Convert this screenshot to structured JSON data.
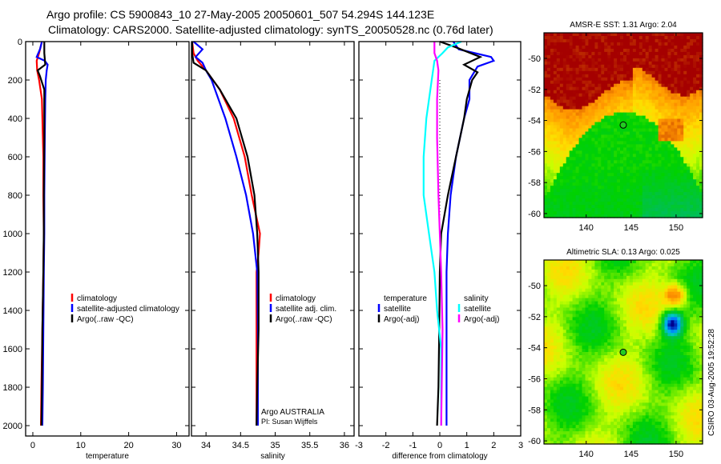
{
  "header": {
    "title_line1": "Argo profile: CS 5900843_10 27-May-2005 20050601_507 54.294S 144.123E",
    "title_line2": "Climatology: CARS2000. Satellite-adjusted climatology: synTS_20050528.nc (0.76d later)"
  },
  "footer_stamp": "CSIRO 03-Aug-2005 19:52:28",
  "credit": [
    "Argo AUSTRALIA",
    "PI: Susan Wijffels"
  ],
  "chart_data": [
    {
      "type": "line",
      "title": "",
      "xlabel": "temperature",
      "ylabel": "",
      "xlim": [
        -1.5,
        32.6
      ],
      "ylim": [
        2054,
        0
      ],
      "xticks": [
        0,
        10,
        20,
        30
      ],
      "yticks": [
        0,
        200,
        400,
        600,
        800,
        1000,
        1200,
        1400,
        1600,
        1800,
        2000
      ],
      "legend": [
        "climatology",
        "satellite-adjusted climatology",
        "Argo(..raw -QC)"
      ],
      "legend_placement": "center-right",
      "series": [
        {
          "name": "climatology",
          "color": "#ff0000",
          "depth": [
            0,
            60,
            100,
            150,
            200,
            300,
            400,
            600,
            800,
            1000,
            1200,
            1500,
            1800,
            2000
          ],
          "values": [
            1.9,
            1.3,
            0.8,
            0.9,
            1.3,
            1.9,
            2.0,
            2.2,
            2.2,
            2.3,
            2.2,
            2.0,
            1.8,
            1.7
          ]
        },
        {
          "name": "satellite-adjusted climatology",
          "color": "#0000ff",
          "depth": [
            0,
            40,
            80,
            100,
            120,
            150,
            200,
            300,
            500,
            800,
            1000,
            1200,
            1500,
            1800,
            2000
          ],
          "values": [
            1.9,
            1.5,
            0.8,
            2.5,
            3.1,
            2.9,
            2.7,
            2.6,
            2.5,
            2.4,
            2.4,
            2.3,
            2.2,
            2.1,
            2.0
          ]
        },
        {
          "name": "Argo(..raw -QC)",
          "color": "#000000",
          "depth": [
            0,
            60,
            90,
            120,
            150,
            180,
            250,
            300,
            500,
            800,
            1000,
            1200,
            1500,
            1800,
            2000
          ],
          "values": [
            2.4,
            2.4,
            2.5,
            2.6,
            1.0,
            1.5,
            2.4,
            2.4,
            2.4,
            2.3,
            2.3,
            2.2,
            2.0,
            1.9,
            1.8
          ]
        }
      ]
    },
    {
      "type": "line",
      "title": "",
      "xlabel": "salinity",
      "xlim": [
        33.79,
        36.14
      ],
      "ylim": [
        2054,
        0
      ],
      "xticks": [
        34,
        34.5,
        35,
        35.5,
        36
      ],
      "xticklabels": [
        "34",
        "34.5",
        "35",
        "35.5",
        "36"
      ],
      "legend": [
        "climatology",
        "satellite adj. clim.",
        "Argo(..raw -QC)"
      ],
      "legend_placement": "center-right",
      "series": [
        {
          "name": "climatology",
          "color": "#ff0000",
          "depth": [
            0,
            60,
            100,
            150,
            250,
            400,
            600,
            800,
            1000,
            1100,
            1200,
            1500,
            2000
          ],
          "values": [
            33.8,
            33.82,
            33.88,
            34.0,
            34.2,
            34.4,
            34.56,
            34.66,
            34.78,
            34.76,
            34.73,
            34.73,
            34.73
          ]
        },
        {
          "name": "satellite adj. clim.",
          "color": "#0000ff",
          "depth": [
            0,
            40,
            80,
            110,
            150,
            200,
            400,
            600,
            800,
            1000,
            1200,
            1500,
            2000
          ],
          "values": [
            33.82,
            33.95,
            33.85,
            33.95,
            34.0,
            34.08,
            34.28,
            34.44,
            34.58,
            34.68,
            34.74,
            34.75,
            34.75
          ]
        },
        {
          "name": "Argo(..raw -QC)",
          "color": "#000000",
          "depth": [
            0,
            60,
            110,
            150,
            250,
            400,
            600,
            800,
            1000,
            1200,
            1500,
            1800,
            2000
          ],
          "values": [
            33.8,
            33.8,
            33.82,
            34.0,
            34.2,
            34.44,
            34.6,
            34.7,
            34.74,
            34.76,
            34.76,
            34.74,
            34.73
          ]
        }
      ]
    },
    {
      "type": "line",
      "title": "",
      "xlabel": "difference from climatology",
      "xlim": [
        -3,
        3
      ],
      "ylim": [
        2054,
        0
      ],
      "xticks": [
        -3,
        -2,
        -1,
        0,
        1,
        2,
        3
      ],
      "legend_groups": [
        {
          "header": "temperature",
          "items": [
            "satellite",
            "Argo(-adj)"
          ]
        },
        {
          "header": "salinity",
          "items": [
            "satellite",
            "Argo(-adj)"
          ]
        }
      ],
      "legend_placement": "center",
      "series": [
        {
          "name": "temperature satellite",
          "color": "#0000ff",
          "depth": [
            0,
            40,
            80,
            100,
            130,
            200,
            300,
            400,
            600,
            800,
            1000,
            1200,
            1500,
            2000
          ],
          "values": [
            0.5,
            0.7,
            1.9,
            2.0,
            1.4,
            1.1,
            1.1,
            0.9,
            0.6,
            0.4,
            0.3,
            0.25,
            0.25,
            0.25
          ]
        },
        {
          "name": "temperature Argo(-adj)",
          "color": "#000000",
          "depth": [
            0,
            30,
            80,
            120,
            160,
            200,
            300,
            400,
            600,
            800,
            1000,
            1200,
            1500,
            1800,
            2000
          ],
          "values": [
            0.0,
            0.6,
            1.5,
            0.9,
            1.4,
            1.2,
            1.0,
            0.9,
            0.6,
            0.3,
            0.05,
            0.0,
            -0.02,
            -0.05,
            -0.1
          ]
        },
        {
          "name": "salinity satellite",
          "color": "#00ffff",
          "depth": [
            0,
            30,
            60,
            100,
            200,
            400,
            600,
            800,
            1000,
            1200,
            1400,
            1600,
            2000
          ],
          "values": [
            0.8,
            0.3,
            0.1,
            -0.2,
            -0.3,
            -0.5,
            -0.6,
            -0.6,
            -0.4,
            -0.2,
            -0.1,
            0.05,
            0.05
          ]
        },
        {
          "name": "salinity Argo(-adj)",
          "color": "#ff00ff",
          "depth": [
            0,
            60,
            100,
            150,
            300,
            500,
            800,
            1000,
            1200,
            1500,
            2000
          ],
          "values": [
            -0.2,
            -0.2,
            -0.1,
            -0.05,
            -0.1,
            -0.1,
            -0.05,
            0.0,
            0.05,
            0.1,
            0.05
          ]
        }
      ]
    },
    {
      "type": "heatmap",
      "title": "AMSR-E SST: 1.31 Argo: 2.04",
      "xlim": [
        135.3,
        152.95
      ],
      "ylim": [
        -60.26,
        -48.35
      ],
      "xticks": [
        140,
        145,
        150
      ],
      "yticks": [
        -50,
        -52,
        -54,
        -56,
        -58,
        -60
      ],
      "marker": {
        "lon": 144.123,
        "lat": -54.294
      }
    },
    {
      "type": "heatmap",
      "title": "Altimetric SLA: 0.13 Argo: 0.025",
      "xlim": [
        135.3,
        152.95
      ],
      "ylim": [
        -60.2,
        -48.35
      ],
      "xticks": [
        140,
        145,
        150
      ],
      "yticks": [
        -50,
        -52,
        -54,
        -56,
        -58,
        -60
      ],
      "marker": {
        "lon": 144.123,
        "lat": -54.294
      }
    }
  ]
}
